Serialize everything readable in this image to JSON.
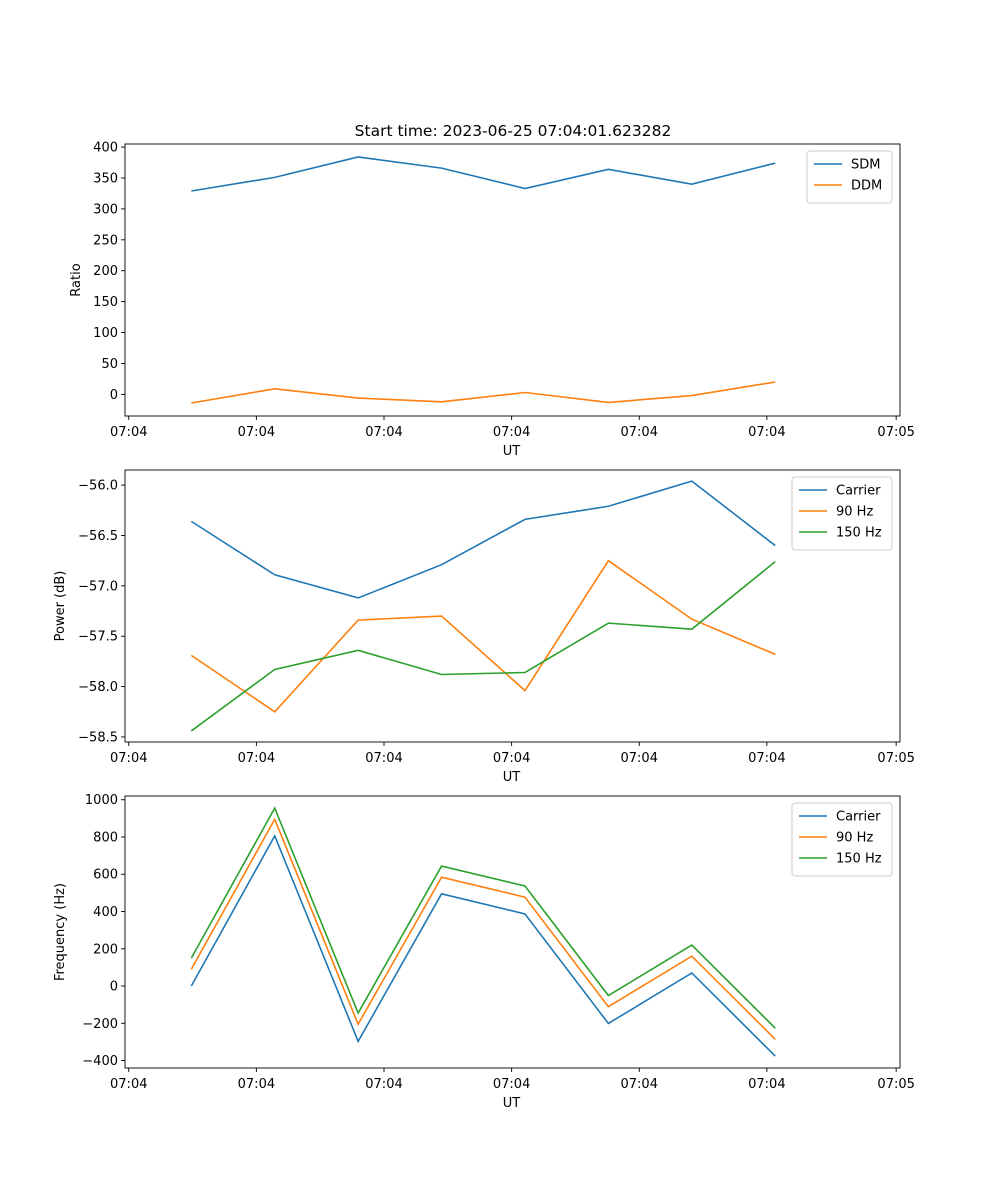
{
  "figure": {
    "title": "Start time: 2023-06-25 07:04:01.623282"
  },
  "chart_data": [
    {
      "type": "line",
      "title": "Start time: 2023-06-25 07:04:01.623282",
      "xlabel": "UT",
      "ylabel": "Ratio",
      "x_tick_labels": [
        "07:04",
        "07:04",
        "07:04",
        "07:04",
        "07:04",
        "07:04",
        "07:05"
      ],
      "y_ticks": [
        0,
        50,
        100,
        150,
        200,
        250,
        300,
        350,
        400
      ],
      "ylim": [
        -35,
        405
      ],
      "legend_position": "upper right",
      "series": [
        {
          "name": "SDM",
          "color": "#1f77b4",
          "values": [
            329,
            351,
            384,
            366,
            333,
            364,
            340,
            374
          ]
        },
        {
          "name": "DDM",
          "color": "#ff7f0e",
          "values": [
            -14,
            9,
            -6,
            -12,
            3,
            -13,
            -2,
            20
          ]
        }
      ]
    },
    {
      "type": "line",
      "xlabel": "UT",
      "ylabel": "Power (dB)",
      "x_tick_labels": [
        "07:04",
        "07:04",
        "07:04",
        "07:04",
        "07:04",
        "07:04",
        "07:05"
      ],
      "y_ticks": [
        -58.5,
        -58.0,
        -57.5,
        -57.0,
        -56.5,
        -56.0
      ],
      "y_tick_labels": [
        "−58.5",
        "−58.0",
        "−57.5",
        "−57.0",
        "−56.5",
        "−56.0"
      ],
      "ylim": [
        -58.55,
        -55.85
      ],
      "legend_position": "upper right",
      "series": [
        {
          "name": "Carrier",
          "color": "#1f77b4",
          "values": [
            -56.36,
            -56.89,
            -57.12,
            -56.79,
            -56.34,
            -56.21,
            -55.96,
            -56.6
          ]
        },
        {
          "name": "90 Hz",
          "color": "#ff7f0e",
          "values": [
            -57.69,
            -58.25,
            -57.34,
            -57.3,
            -58.04,
            -56.75,
            -57.33,
            -57.68
          ]
        },
        {
          "name": "150 Hz",
          "color": "#2ca02c",
          "values": [
            -58.44,
            -57.83,
            -57.64,
            -57.88,
            -57.86,
            -57.37,
            -57.43,
            -56.76
          ]
        }
      ]
    },
    {
      "type": "line",
      "xlabel": "UT",
      "ylabel": "Frequency (Hz)",
      "x_tick_labels": [
        "07:04",
        "07:04",
        "07:04",
        "07:04",
        "07:04",
        "07:04",
        "07:05"
      ],
      "y_ticks": [
        -400,
        -200,
        0,
        200,
        400,
        600,
        800,
        1000
      ],
      "y_tick_labels": [
        "−400",
        "−200",
        "0",
        "200",
        "400",
        "600",
        "800",
        "1000"
      ],
      "ylim": [
        -440,
        1020
      ],
      "legend_position": "upper right",
      "series": [
        {
          "name": "Carrier",
          "color": "#1f77b4",
          "values": [
            0,
            806,
            -297,
            495,
            387,
            -201,
            70,
            -376
          ]
        },
        {
          "name": "90 Hz",
          "color": "#ff7f0e",
          "values": [
            90,
            895,
            -205,
            584,
            477,
            -111,
            160,
            -286
          ]
        },
        {
          "name": "150 Hz",
          "color": "#2ca02c",
          "values": [
            150,
            955,
            -145,
            644,
            537,
            -51,
            220,
            -226
          ]
        }
      ]
    }
  ]
}
